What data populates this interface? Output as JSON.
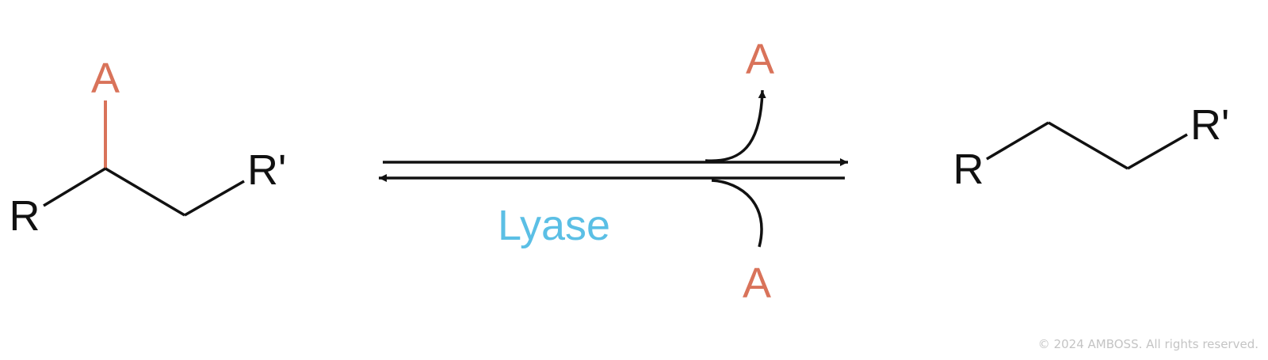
{
  "colors": {
    "bond": "#111111",
    "group_a": "#d9735a",
    "enzyme": "#5bbfe5",
    "copyright": "#c4c4c4"
  },
  "reactant": {
    "group_a": "A",
    "substituent_r": "R",
    "substituent_r_prime": "R'"
  },
  "reaction": {
    "enzyme_label": "Lyase",
    "released_group": "A",
    "added_group": "A",
    "direction": "reversible"
  },
  "product": {
    "substituent_r": "R",
    "substituent_r_prime": "R'"
  },
  "footer": {
    "copyright": "© 2024 AMBOSS. All rights reserved."
  }
}
